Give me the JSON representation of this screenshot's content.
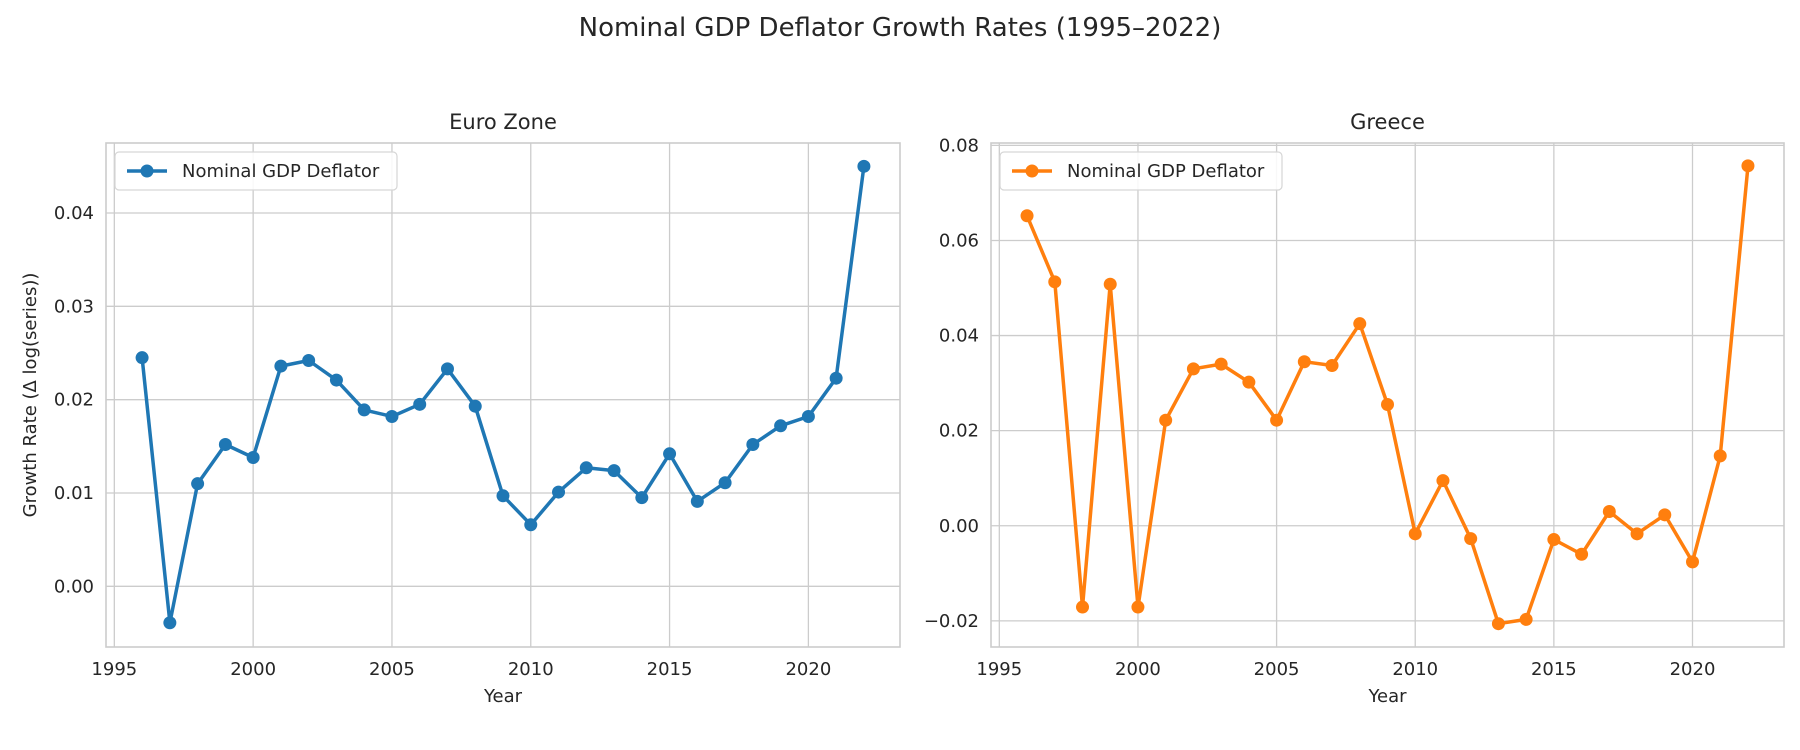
{
  "title": "Nominal GDP Deflator Growth Rates (1995–2022)",
  "chart_data": [
    {
      "type": "line",
      "title": "Euro Zone",
      "xlabel": "Year",
      "ylabel": "Growth Rate (Δ log(series))",
      "xlim": [
        1994.7,
        2023.3
      ],
      "ylim": [
        -0.0065,
        0.0475
      ],
      "xticks": [
        1995,
        2000,
        2005,
        2010,
        2015,
        2020
      ],
      "yticks": [
        0.0,
        0.01,
        0.02,
        0.03,
        0.04
      ],
      "ytick_labels": [
        "0.00",
        "0.01",
        "0.02",
        "0.03",
        "0.04"
      ],
      "grid": true,
      "legend_position": "upper-left",
      "color": "#1f77b4",
      "x": [
        1996,
        1997,
        1998,
        1999,
        2000,
        2001,
        2002,
        2003,
        2004,
        2005,
        2006,
        2007,
        2008,
        2009,
        2010,
        2011,
        2012,
        2013,
        2014,
        2015,
        2016,
        2017,
        2018,
        2019,
        2020,
        2021,
        2022
      ],
      "series": [
        {
          "name": "Nominal GDP Deflator",
          "values": [
            0.0245,
            -0.0039,
            0.011,
            0.0152,
            0.0138,
            0.0236,
            0.0242,
            0.0221,
            0.0189,
            0.0182,
            0.0195,
            0.0233,
            0.0193,
            0.0097,
            0.0066,
            0.0101,
            0.0127,
            0.0124,
            0.0095,
            0.0142,
            0.0091,
            0.0111,
            0.0152,
            0.0172,
            0.0182,
            0.0223,
            0.045
          ]
        }
      ]
    },
    {
      "type": "line",
      "title": "Greece",
      "xlabel": "Year",
      "ylabel": "",
      "xlim": [
        1994.7,
        2023.3
      ],
      "ylim": [
        -0.0255,
        0.0805
      ],
      "xticks": [
        1995,
        2000,
        2005,
        2010,
        2015,
        2020
      ],
      "yticks": [
        -0.02,
        0.0,
        0.02,
        0.04,
        0.06,
        0.08
      ],
      "ytick_labels": [
        "−0.02",
        "0.00",
        "0.02",
        "0.04",
        "0.06",
        "0.08"
      ],
      "grid": true,
      "legend_position": "upper-left",
      "color": "#ff7f0e",
      "x": [
        1996,
        1997,
        1998,
        1999,
        2000,
        2001,
        2002,
        2003,
        2004,
        2005,
        2006,
        2007,
        2008,
        2009,
        2010,
        2011,
        2012,
        2013,
        2014,
        2015,
        2016,
        2017,
        2018,
        2019,
        2020,
        2021,
        2022
      ],
      "series": [
        {
          "name": "Nominal GDP Deflator",
          "values": [
            0.0652,
            0.0513,
            -0.0171,
            0.0508,
            -0.0171,
            0.0222,
            0.033,
            0.034,
            0.0302,
            0.0222,
            0.0345,
            0.0337,
            0.0425,
            0.0255,
            -0.0017,
            0.0095,
            -0.0027,
            -0.0206,
            -0.0197,
            -0.0029,
            -0.006,
            0.003,
            -0.0017,
            0.0023,
            -0.0076,
            0.0147,
            0.0757
          ]
        }
      ]
    }
  ]
}
